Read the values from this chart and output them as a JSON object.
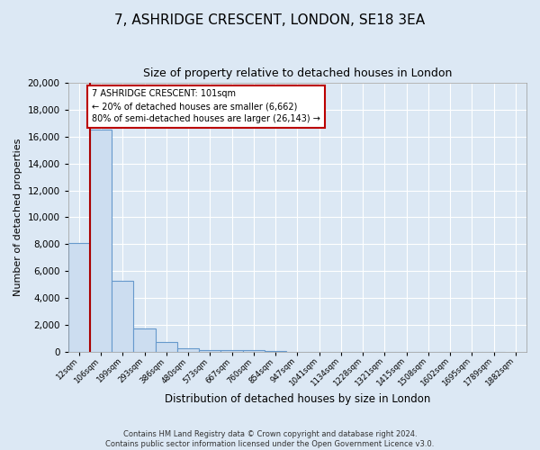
{
  "title": "7, ASHRIDGE CRESCENT, LONDON, SE18 3EA",
  "subtitle": "Size of property relative to detached houses in London",
  "xlabel": "Distribution of detached houses by size in London",
  "ylabel": "Number of detached properties",
  "bin_labels": [
    "12sqm",
    "106sqm",
    "199sqm",
    "293sqm",
    "386sqm",
    "480sqm",
    "573sqm",
    "667sqm",
    "760sqm",
    "854sqm",
    "947sqm",
    "1041sqm",
    "1134sqm",
    "1228sqm",
    "1321sqm",
    "1415sqm",
    "1508sqm",
    "1602sqm",
    "1695sqm",
    "1789sqm",
    "1882sqm"
  ],
  "bar_heights": [
    8100,
    16500,
    5300,
    1750,
    750,
    250,
    150,
    100,
    120,
    80,
    0,
    0,
    0,
    0,
    0,
    0,
    0,
    0,
    0,
    0
  ],
  "bar_color": "#ccddf0",
  "bar_edge_color": "#6699cc",
  "vline_color": "#aa0000",
  "annotation_line1": "7 ASHRIDGE CRESCENT: 101sqm",
  "annotation_line2": "← 20% of detached houses are smaller (6,662)",
  "annotation_line3": "80% of semi-detached houses are larger (26,143) →",
  "annotation_box_color": "#ffffff",
  "annotation_box_edge_color": "#bb0000",
  "ylim": [
    0,
    20000
  ],
  "yticks": [
    0,
    2000,
    4000,
    6000,
    8000,
    10000,
    12000,
    14000,
    16000,
    18000,
    20000
  ],
  "background_color": "#dce8f4",
  "plot_bg_color": "#dce8f4",
  "grid_color": "#ffffff",
  "footer_line1": "Contains HM Land Registry data © Crown copyright and database right 2024.",
  "footer_line2": "Contains public sector information licensed under the Open Government Licence v3.0."
}
